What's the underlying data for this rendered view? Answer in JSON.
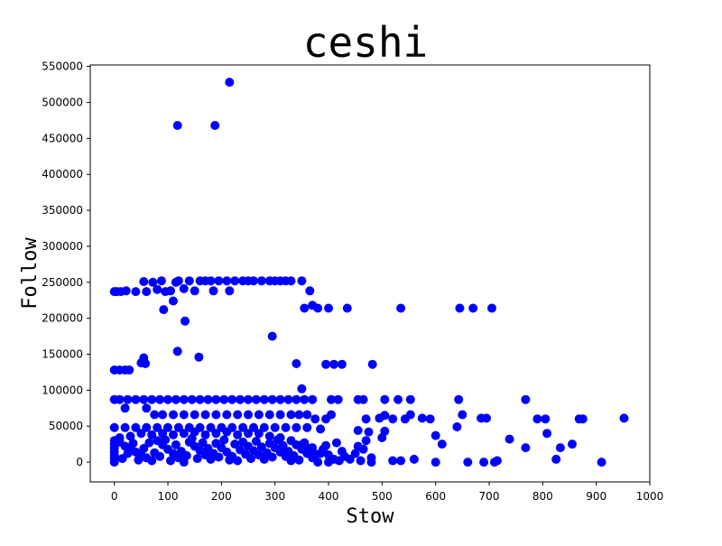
{
  "chart_data": {
    "type": "scatter",
    "title": "ceshi",
    "xlabel": "Stow",
    "ylabel": "Follow",
    "xlim": [
      -45,
      1000
    ],
    "ylim": [
      -27500,
      552000
    ],
    "xticks": [
      0,
      100,
      200,
      300,
      400,
      500,
      600,
      700,
      800,
      900,
      1000
    ],
    "yticks": [
      0,
      50000,
      100000,
      150000,
      200000,
      250000,
      300000,
      350000,
      400000,
      450000,
      500000,
      550000
    ],
    "xtick_labels": [
      "0",
      "100",
      "200",
      "300",
      "400",
      "500",
      "600",
      "700",
      "800",
      "900",
      "1000"
    ],
    "ytick_labels": [
      "0",
      "50000",
      "100000",
      "150000",
      "200000",
      "250000",
      "300000",
      "350000",
      "400000",
      "450000",
      "500000",
      "550000"
    ],
    "marker_color": "#0000ff",
    "grid": false,
    "legend": "none",
    "points": [
      [
        215,
        528000
      ],
      [
        118,
        468000
      ],
      [
        188,
        468000
      ],
      [
        0,
        237000
      ],
      [
        5,
        237000
      ],
      [
        12,
        237000
      ],
      [
        22,
        238000
      ],
      [
        40,
        237000
      ],
      [
        55,
        251000
      ],
      [
        60,
        237000
      ],
      [
        72,
        250000
      ],
      [
        80,
        240000
      ],
      [
        88,
        252000
      ],
      [
        95,
        237000
      ],
      [
        105,
        238000
      ],
      [
        115,
        250000
      ],
      [
        120,
        252000
      ],
      [
        130,
        241000
      ],
      [
        140,
        252000
      ],
      [
        150,
        238000
      ],
      [
        160,
        252000
      ],
      [
        170,
        252000
      ],
      [
        180,
        252000
      ],
      [
        185,
        238000
      ],
      [
        195,
        252000
      ],
      [
        210,
        252000
      ],
      [
        215,
        238000
      ],
      [
        225,
        252000
      ],
      [
        240,
        252000
      ],
      [
        250,
        252000
      ],
      [
        260,
        252000
      ],
      [
        275,
        252000
      ],
      [
        290,
        252000
      ],
      [
        300,
        252000
      ],
      [
        310,
        252000
      ],
      [
        320,
        252000
      ],
      [
        330,
        252000
      ],
      [
        350,
        252000
      ],
      [
        365,
        238000
      ],
      [
        92,
        212000
      ],
      [
        110,
        224000
      ],
      [
        132,
        196000
      ],
      [
        355,
        214000
      ],
      [
        370,
        218000
      ],
      [
        380,
        214000
      ],
      [
        400,
        214000
      ],
      [
        435,
        214000
      ],
      [
        535,
        214000
      ],
      [
        645,
        214000
      ],
      [
        670,
        214000
      ],
      [
        705,
        214000
      ],
      [
        0,
        128000
      ],
      [
        10,
        128000
      ],
      [
        20,
        128000
      ],
      [
        28,
        128000
      ],
      [
        50,
        138000
      ],
      [
        55,
        145000
      ],
      [
        58,
        137000
      ],
      [
        118,
        154000
      ],
      [
        158,
        146000
      ],
      [
        295,
        175000
      ],
      [
        340,
        137000
      ],
      [
        395,
        136000
      ],
      [
        410,
        136000
      ],
      [
        425,
        136000
      ],
      [
        482,
        136000
      ],
      [
        0,
        87000
      ],
      [
        10,
        87000
      ],
      [
        25,
        87000
      ],
      [
        40,
        87000
      ],
      [
        55,
        87000
      ],
      [
        70,
        87000
      ],
      [
        85,
        87000
      ],
      [
        100,
        87000
      ],
      [
        115,
        87000
      ],
      [
        130,
        87000
      ],
      [
        145,
        87000
      ],
      [
        160,
        87000
      ],
      [
        175,
        87000
      ],
      [
        190,
        87000
      ],
      [
        205,
        87000
      ],
      [
        220,
        87000
      ],
      [
        235,
        87000
      ],
      [
        250,
        87000
      ],
      [
        265,
        87000
      ],
      [
        280,
        87000
      ],
      [
        295,
        87000
      ],
      [
        310,
        87000
      ],
      [
        325,
        87000
      ],
      [
        340,
        87000
      ],
      [
        355,
        87000
      ],
      [
        370,
        87000
      ],
      [
        405,
        87000
      ],
      [
        418,
        87000
      ],
      [
        455,
        87000
      ],
      [
        465,
        87000
      ],
      [
        505,
        87000
      ],
      [
        530,
        87000
      ],
      [
        553,
        87000
      ],
      [
        643,
        87000
      ],
      [
        768,
        87000
      ],
      [
        350,
        102000
      ],
      [
        20,
        75000
      ],
      [
        60,
        75000
      ],
      [
        75,
        66000
      ],
      [
        90,
        66000
      ],
      [
        110,
        66000
      ],
      [
        130,
        66000
      ],
      [
        150,
        66000
      ],
      [
        170,
        66000
      ],
      [
        190,
        66000
      ],
      [
        210,
        66000
      ],
      [
        230,
        66000
      ],
      [
        250,
        66000
      ],
      [
        270,
        66000
      ],
      [
        290,
        66000
      ],
      [
        310,
        66000
      ],
      [
        330,
        66000
      ],
      [
        345,
        66000
      ],
      [
        360,
        66000
      ],
      [
        375,
        60000
      ],
      [
        395,
        60000
      ],
      [
        405,
        66000
      ],
      [
        470,
        60000
      ],
      [
        495,
        61000
      ],
      [
        505,
        65000
      ],
      [
        520,
        60000
      ],
      [
        543,
        60000
      ],
      [
        553,
        66000
      ],
      [
        575,
        61000
      ],
      [
        590,
        60000
      ],
      [
        650,
        66000
      ],
      [
        685,
        61000
      ],
      [
        695,
        61000
      ],
      [
        790,
        60000
      ],
      [
        805,
        60000
      ],
      [
        868,
        60000
      ],
      [
        875,
        60000
      ],
      [
        952,
        61000
      ],
      [
        0,
        48000
      ],
      [
        20,
        48000
      ],
      [
        40,
        48000
      ],
      [
        60,
        48000
      ],
      [
        80,
        48000
      ],
      [
        100,
        48000
      ],
      [
        120,
        48000
      ],
      [
        140,
        48000
      ],
      [
        160,
        48000
      ],
      [
        180,
        48000
      ],
      [
        200,
        48000
      ],
      [
        220,
        48000
      ],
      [
        240,
        48000
      ],
      [
        260,
        48000
      ],
      [
        280,
        48000
      ],
      [
        300,
        48000
      ],
      [
        320,
        48000
      ],
      [
        340,
        48000
      ],
      [
        360,
        48000
      ],
      [
        385,
        46000
      ],
      [
        455,
        44000
      ],
      [
        475,
        42000
      ],
      [
        505,
        43000
      ],
      [
        640,
        49000
      ],
      [
        600,
        37000
      ],
      [
        612,
        25000
      ],
      [
        738,
        32000
      ],
      [
        808,
        40000
      ],
      [
        768,
        20000
      ],
      [
        833,
        20000
      ],
      [
        855,
        25000
      ],
      [
        825,
        4000
      ],
      [
        910,
        0
      ],
      [
        715,
        2000
      ],
      [
        710,
        0
      ],
      [
        690,
        0
      ],
      [
        660,
        0
      ],
      [
        600,
        0
      ],
      [
        560,
        4000
      ],
      [
        535,
        2000
      ],
      [
        520,
        2000
      ],
      [
        480,
        0
      ],
      [
        460,
        2000
      ],
      [
        440,
        4000
      ],
      [
        420,
        2000
      ],
      [
        400,
        0
      ],
      [
        385,
        12000
      ],
      [
        370,
        20000
      ],
      [
        350,
        24000
      ],
      [
        330,
        30000
      ],
      [
        310,
        34000
      ],
      [
        290,
        36000
      ],
      [
        270,
        40000
      ],
      [
        250,
        40000
      ],
      [
        230,
        38000
      ],
      [
        210,
        42000
      ],
      [
        190,
        40000
      ],
      [
        170,
        38000
      ],
      [
        150,
        42000
      ],
      [
        130,
        40000
      ],
      [
        110,
        38000
      ],
      [
        90,
        40000
      ],
      [
        70,
        38000
      ],
      [
        50,
        40000
      ],
      [
        30,
        36000
      ],
      [
        10,
        34000
      ],
      [
        0,
        30000
      ],
      [
        0,
        25000
      ],
      [
        0,
        20000
      ],
      [
        0,
        15000
      ],
      [
        0,
        10000
      ],
      [
        0,
        5000
      ],
      [
        0,
        0
      ],
      [
        10,
        28000
      ],
      [
        20,
        22000
      ],
      [
        30,
        18000
      ],
      [
        40,
        14000
      ],
      [
        50,
        10000
      ],
      [
        60,
        6000
      ],
      [
        70,
        2000
      ],
      [
        80,
        30000
      ],
      [
        90,
        24000
      ],
      [
        100,
        18000
      ],
      [
        110,
        12000
      ],
      [
        120,
        6000
      ],
      [
        130,
        0
      ],
      [
        140,
        28000
      ],
      [
        150,
        22000
      ],
      [
        160,
        16000
      ],
      [
        170,
        10000
      ],
      [
        180,
        4000
      ],
      [
        190,
        26000
      ],
      [
        200,
        20000
      ],
      [
        210,
        14000
      ],
      [
        220,
        8000
      ],
      [
        230,
        2000
      ],
      [
        240,
        28000
      ],
      [
        250,
        22000
      ],
      [
        260,
        16000
      ],
      [
        270,
        10000
      ],
      [
        280,
        4000
      ],
      [
        290,
        26000
      ],
      [
        300,
        20000
      ],
      [
        310,
        14000
      ],
      [
        320,
        8000
      ],
      [
        330,
        2000
      ],
      [
        340,
        24000
      ],
      [
        350,
        18000
      ],
      [
        360,
        12000
      ],
      [
        370,
        6000
      ],
      [
        380,
        0
      ],
      [
        390,
        18000
      ],
      [
        400,
        10000
      ],
      [
        410,
        4000
      ],
      [
        430,
        8000
      ],
      [
        450,
        12000
      ],
      [
        455,
        22000
      ],
      [
        465,
        18000
      ],
      [
        470,
        30000
      ],
      [
        480,
        6000
      ],
      [
        500,
        34000
      ],
      [
        15,
        5000
      ],
      [
        25,
        12000
      ],
      [
        35,
        26000
      ],
      [
        45,
        3000
      ],
      [
        55,
        19000
      ],
      [
        65,
        27000
      ],
      [
        75,
        13000
      ],
      [
        85,
        8000
      ],
      [
        95,
        31000
      ],
      [
        105,
        2000
      ],
      [
        115,
        24000
      ],
      [
        125,
        15000
      ],
      [
        135,
        9000
      ],
      [
        145,
        33000
      ],
      [
        155,
        5000
      ],
      [
        165,
        27000
      ],
      [
        175,
        19000
      ],
      [
        185,
        12000
      ],
      [
        195,
        7000
      ],
      [
        205,
        31000
      ],
      [
        215,
        3000
      ],
      [
        225,
        25000
      ],
      [
        235,
        17000
      ],
      [
        245,
        11000
      ],
      [
        255,
        5000
      ],
      [
        265,
        29000
      ],
      [
        275,
        21000
      ],
      [
        285,
        13000
      ],
      [
        295,
        7000
      ],
      [
        305,
        31000
      ],
      [
        315,
        23000
      ],
      [
        325,
        15000
      ],
      [
        335,
        9000
      ],
      [
        345,
        3000
      ],
      [
        355,
        27000
      ],
      [
        365,
        19000
      ],
      [
        375,
        11000
      ],
      [
        395,
        23000
      ],
      [
        415,
        27000
      ],
      [
        425,
        15000
      ]
    ]
  }
}
